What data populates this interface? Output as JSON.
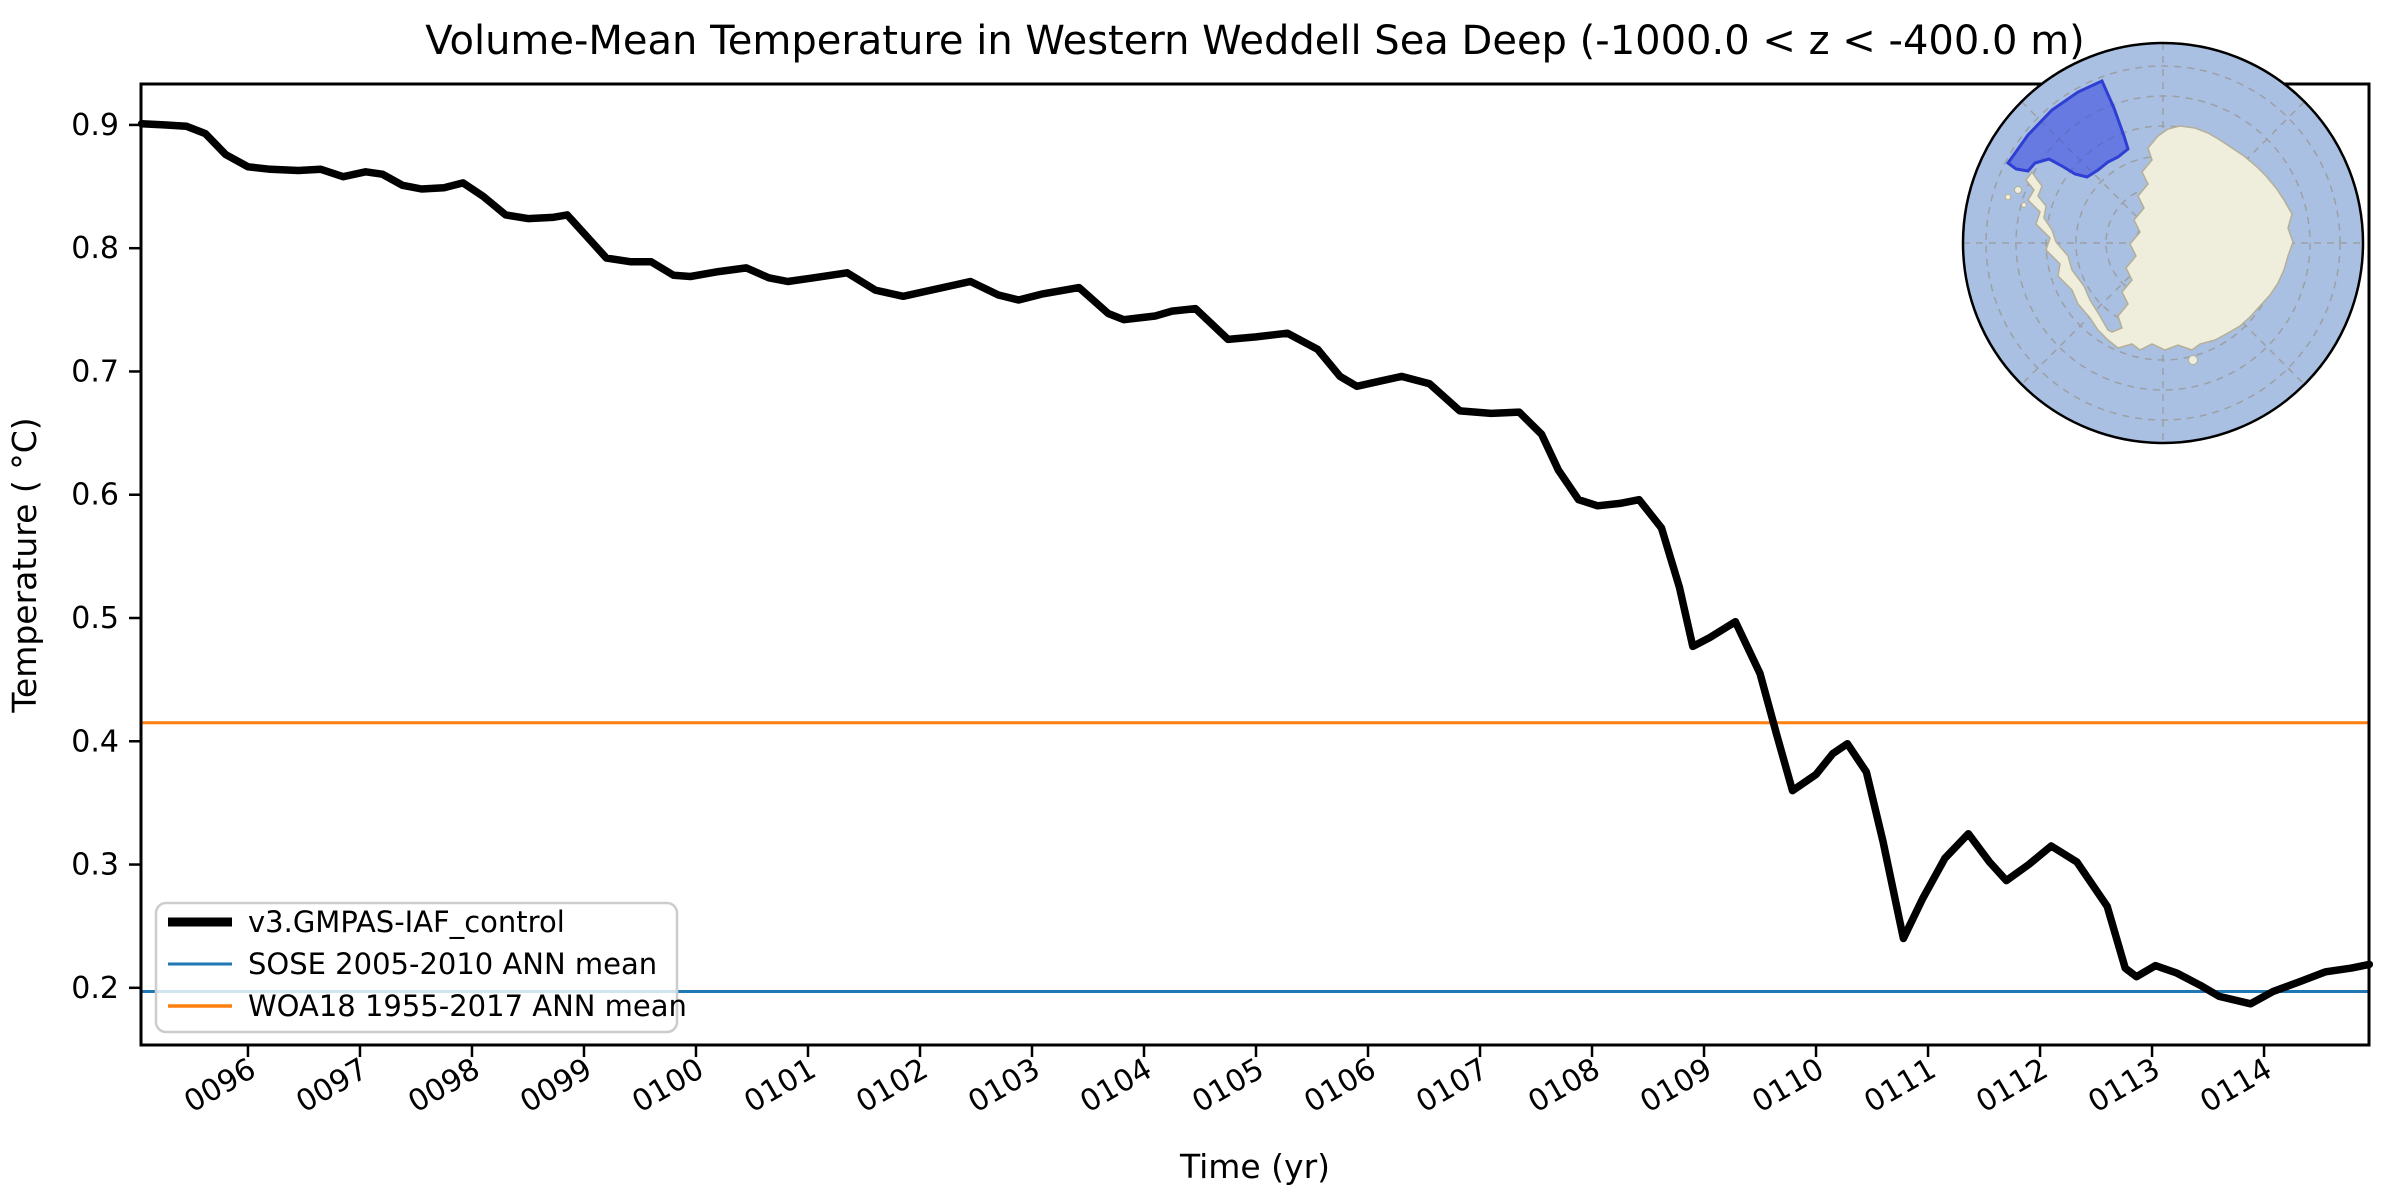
{
  "title": "Volume-Mean Temperature in Western Weddell Sea Deep (-1000.0 < z < -400.0 m)",
  "axes": {
    "xlabel": "Time (yr)",
    "ylabel": "Temperature ( °C)",
    "x_tick_labels": [
      "0096",
      "0097",
      "0098",
      "0099",
      "0100",
      "0101",
      "0102",
      "0103",
      "0104",
      "0105",
      "0106",
      "0107",
      "0108",
      "0109",
      "0110",
      "0111",
      "0112",
      "0113",
      "0114"
    ],
    "x_tick_years": [
      96,
      97,
      98,
      99,
      100,
      101,
      102,
      103,
      104,
      105,
      106,
      107,
      108,
      109,
      110,
      111,
      112,
      113,
      114
    ],
    "y_tick_labels": [
      "0.9",
      "0.8",
      "0.7",
      "0.6",
      "0.5",
      "0.4",
      "0.3",
      "0.2"
    ],
    "y_tick_values": [
      0.9,
      0.8,
      0.7,
      0.6,
      0.5,
      0.4,
      0.3,
      0.2
    ]
  },
  "legend": {
    "entries": [
      {
        "label": "v3.GMPAS-IAF_control",
        "color": "#000000",
        "linewidth": 9
      },
      {
        "label": "SOSE 2005-2010 ANN mean",
        "color": "#1f77b4",
        "linewidth": 3
      },
      {
        "label": "WOA18 1955-2017 ANN mean",
        "color": "#ff7f0e",
        "linewidth": 3.5
      }
    ]
  },
  "chart_data": {
    "type": "line",
    "title": "Volume-Mean Temperature in Western Weddell Sea Deep (-1000.0 < z < -400.0 m)",
    "xlabel": "Time (yr)",
    "ylabel": "Temperature ( °C)",
    "xlim": [
      95.045,
      114.937
    ],
    "ylim": [
      0.1536,
      0.9332
    ],
    "grid": false,
    "legend_position": "lower left",
    "series": [
      {
        "name": "v3.GMPAS-IAF_control",
        "color": "#000000",
        "points": [
          [
            95.05,
            0.901
          ],
          [
            95.25,
            0.9
          ],
          [
            95.45,
            0.899
          ],
          [
            95.62,
            0.893
          ],
          [
            95.8,
            0.876
          ],
          [
            96.0,
            0.866
          ],
          [
            96.2,
            0.864
          ],
          [
            96.45,
            0.863
          ],
          [
            96.65,
            0.864
          ],
          [
            96.85,
            0.858
          ],
          [
            97.05,
            0.862
          ],
          [
            97.2,
            0.86
          ],
          [
            97.38,
            0.851
          ],
          [
            97.55,
            0.848
          ],
          [
            97.75,
            0.849
          ],
          [
            97.92,
            0.853
          ],
          [
            98.1,
            0.842
          ],
          [
            98.3,
            0.827
          ],
          [
            98.5,
            0.824
          ],
          [
            98.72,
            0.825
          ],
          [
            98.85,
            0.827
          ],
          [
            99.0,
            0.812
          ],
          [
            99.2,
            0.792
          ],
          [
            99.42,
            0.789
          ],
          [
            99.6,
            0.789
          ],
          [
            99.8,
            0.778
          ],
          [
            99.95,
            0.777
          ],
          [
            100.2,
            0.781
          ],
          [
            100.45,
            0.784
          ],
          [
            100.65,
            0.776
          ],
          [
            100.82,
            0.773
          ],
          [
            101.05,
            0.776
          ],
          [
            101.35,
            0.78
          ],
          [
            101.6,
            0.766
          ],
          [
            101.85,
            0.761
          ],
          [
            102.1,
            0.766
          ],
          [
            102.45,
            0.773
          ],
          [
            102.7,
            0.762
          ],
          [
            102.88,
            0.758
          ],
          [
            103.1,
            0.763
          ],
          [
            103.42,
            0.768
          ],
          [
            103.68,
            0.747
          ],
          [
            103.82,
            0.742
          ],
          [
            104.1,
            0.745
          ],
          [
            104.25,
            0.749
          ],
          [
            104.46,
            0.751
          ],
          [
            104.75,
            0.726
          ],
          [
            105.0,
            0.728
          ],
          [
            105.28,
            0.731
          ],
          [
            105.55,
            0.718
          ],
          [
            105.75,
            0.696
          ],
          [
            105.9,
            0.688
          ],
          [
            106.1,
            0.692
          ],
          [
            106.3,
            0.696
          ],
          [
            106.55,
            0.69
          ],
          [
            106.82,
            0.668
          ],
          [
            107.1,
            0.666
          ],
          [
            107.35,
            0.667
          ],
          [
            107.55,
            0.649
          ],
          [
            107.7,
            0.62
          ],
          [
            107.88,
            0.596
          ],
          [
            108.05,
            0.591
          ],
          [
            108.25,
            0.593
          ],
          [
            108.42,
            0.596
          ],
          [
            108.62,
            0.573
          ],
          [
            108.78,
            0.525
          ],
          [
            108.9,
            0.477
          ],
          [
            109.05,
            0.484
          ],
          [
            109.28,
            0.497
          ],
          [
            109.5,
            0.455
          ],
          [
            109.65,
            0.405
          ],
          [
            109.79,
            0.36
          ],
          [
            110.0,
            0.373
          ],
          [
            110.15,
            0.39
          ],
          [
            110.28,
            0.398
          ],
          [
            110.45,
            0.375
          ],
          [
            110.6,
            0.318
          ],
          [
            110.78,
            0.24
          ],
          [
            110.95,
            0.272
          ],
          [
            111.15,
            0.305
          ],
          [
            111.36,
            0.325
          ],
          [
            111.55,
            0.302
          ],
          [
            111.7,
            0.287
          ],
          [
            111.9,
            0.3
          ],
          [
            112.1,
            0.315
          ],
          [
            112.33,
            0.302
          ],
          [
            112.6,
            0.266
          ],
          [
            112.76,
            0.216
          ],
          [
            112.86,
            0.209
          ],
          [
            113.03,
            0.218
          ],
          [
            113.22,
            0.212
          ],
          [
            113.43,
            0.202
          ],
          [
            113.6,
            0.193
          ],
          [
            113.88,
            0.187
          ],
          [
            114.08,
            0.197
          ],
          [
            114.32,
            0.205
          ],
          [
            114.55,
            0.213
          ],
          [
            114.78,
            0.216
          ],
          [
            114.94,
            0.219
          ]
        ]
      }
    ],
    "reference_lines": [
      {
        "name": "SOSE 2005-2010 ANN mean",
        "value": 0.197,
        "color": "#1f77b4"
      },
      {
        "name": "WOA18 1955-2017 ANN mean",
        "value": 0.415,
        "color": "#ff7f0e"
      }
    ]
  },
  "inset_map": {
    "description": "South polar stereographic map of Antarctica",
    "highlight_region_name": "Western Weddell Sea",
    "ocean_color": "#a9c0e2",
    "land_color": "#efeedd",
    "highlight_fill": "#3d4fe0",
    "highlight_edge": "#2f3fd3",
    "highlight_points": [
      [
        2008,
        163
      ],
      [
        2028,
        135
      ],
      [
        2052,
        110
      ],
      [
        2078,
        92
      ],
      [
        2102,
        81
      ],
      [
        2114,
        108
      ],
      [
        2124,
        136
      ],
      [
        2128,
        149
      ],
      [
        2118,
        157
      ],
      [
        2108,
        162
      ],
      [
        2098,
        170
      ],
      [
        2087,
        177
      ],
      [
        2075,
        174
      ],
      [
        2062,
        166
      ],
      [
        2049,
        159
      ],
      [
        2035,
        163
      ],
      [
        2028,
        171
      ],
      [
        2016,
        169
      ]
    ]
  },
  "colors": {
    "series_black": "#000000",
    "sose_blue": "#1f77b4",
    "woa_orange": "#ff7f0e",
    "spine": "#000000"
  }
}
